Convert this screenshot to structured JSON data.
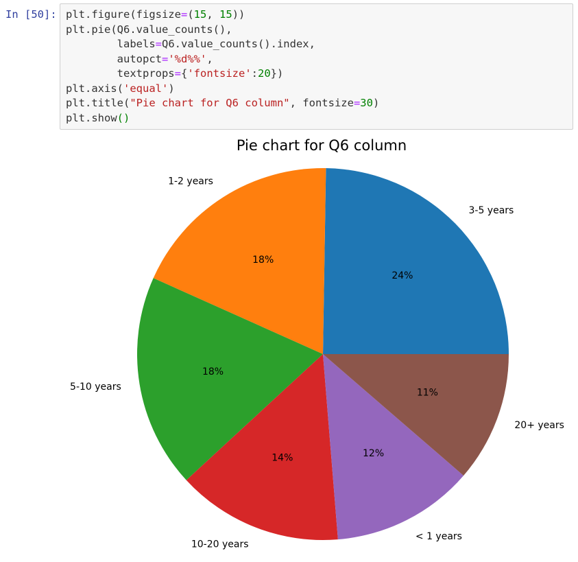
{
  "notebook": {
    "prompt": "In [50]:",
    "code_lines": [
      [
        [
          "plt.figure(figsize",
          "p"
        ],
        [
          "=",
          "op"
        ],
        [
          "(",
          "p"
        ],
        [
          "15",
          "num"
        ],
        [
          ", ",
          "p"
        ],
        [
          "15",
          "num"
        ],
        [
          "))",
          "p"
        ]
      ],
      [
        [
          "plt.pie(Q6.value_counts(),",
          "p"
        ]
      ],
      [
        [
          "        labels",
          "p"
        ],
        [
          "=",
          "op"
        ],
        [
          "Q6.value_counts().index,",
          "p"
        ]
      ],
      [
        [
          "        autopct",
          "p"
        ],
        [
          "=",
          "op"
        ],
        [
          "'%d%%'",
          "str"
        ],
        [
          ",",
          "p"
        ]
      ],
      [
        [
          "        textprops",
          "p"
        ],
        [
          "=",
          "op"
        ],
        [
          "{",
          "p"
        ],
        [
          "'fontsize'",
          "str"
        ],
        [
          ":",
          "p"
        ],
        [
          "20",
          "num"
        ],
        [
          "})",
          "p"
        ]
      ],
      [
        [
          "plt.axis(",
          "p"
        ],
        [
          "'equal'",
          "str"
        ],
        [
          ")",
          "p"
        ]
      ],
      [
        [
          "plt.title(",
          "p"
        ],
        [
          "\"Pie chart for Q6 column\"",
          "str"
        ],
        [
          ", fontsize",
          "p"
        ],
        [
          "=",
          "op"
        ],
        [
          "30",
          "num"
        ],
        [
          ")",
          "p"
        ]
      ],
      [
        [
          "plt.show",
          "p"
        ],
        [
          "()",
          "num"
        ]
      ]
    ]
  },
  "chart_data": {
    "type": "pie",
    "title": "Pie chart for Q6 column",
    "start_angle_deg": 0,
    "direction": "counterclockwise",
    "slices": [
      {
        "label": "3-5 years",
        "value": 24,
        "pct_label": "24%",
        "color": "#1f77b4"
      },
      {
        "label": "1-2 years",
        "value": 18,
        "pct_label": "18%",
        "color": "#ff7f0e"
      },
      {
        "label": "5-10 years",
        "value": 18,
        "pct_label": "18%",
        "color": "#2ca02c"
      },
      {
        "label": "10-20 years",
        "value": 14,
        "pct_label": "14%",
        "color": "#d62728"
      },
      {
        "label": "< 1 years",
        "value": 12,
        "pct_label": "12%",
        "color": "#9467bd"
      },
      {
        "label": "20+ years",
        "value": 11,
        "pct_label": "11%",
        "color": "#8c564b"
      }
    ]
  }
}
